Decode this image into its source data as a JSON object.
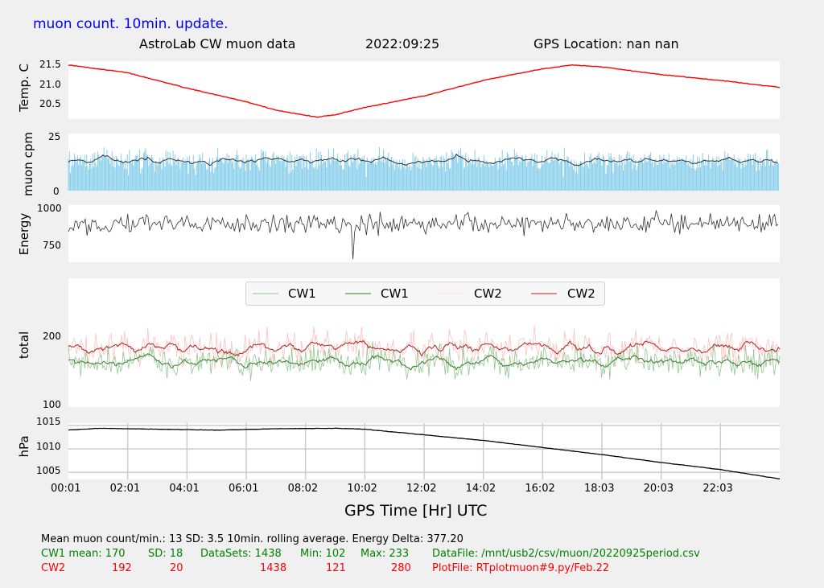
{
  "header": {
    "update_note": "muon count.  10min. update.",
    "title": "AstroLab CW muon data",
    "date": "2022:09:25",
    "gps_location": "GPS Location: nan   nan"
  },
  "xaxis": {
    "label": "GPS Time  [Hr] UTC",
    "ticks": [
      "00:01",
      "02:01",
      "04:01",
      "06:01",
      "08:02",
      "10:02",
      "12:02",
      "14:02",
      "16:02",
      "18:03",
      "20:03",
      "22:03"
    ]
  },
  "legend": [
    "CW1",
    "CW1",
    "CW2",
    "CW2"
  ],
  "stats": {
    "line1": "Mean muon count/min.: 13  SD: 3.5   10min. rolling average.    Energy Delta:  377.20",
    "cw1": {
      "label": "CW1 mean: 170",
      "sd": "SD: 18",
      "datasets": "DataSets: 1438",
      "min": "Min: 102",
      "max": "Max: 233",
      "file": "DataFile: /mnt/usb2/csv/muon/20220925period.csv"
    },
    "cw2": {
      "label": "CW2",
      "mean": "192",
      "sd": "20",
      "datasets": "1438",
      "min": "121",
      "max": "280",
      "file": "PlotFile: RTplotmuon#9.py/Feb.22"
    }
  },
  "colors": {
    "temp": "#ff0000",
    "muon_bar": "#87ceeb",
    "muon_avg": "#333333",
    "energy": "#333333",
    "cw1_raw": "#90c890",
    "cw1_avg": "#3a7a2a",
    "cw2_raw": "#ffc0c0",
    "cw2_avg": "#b02020",
    "pressure": "#000000",
    "update_note": "#0000ff"
  },
  "chart_data": [
    {
      "type": "line",
      "name": "temperature",
      "ylabel": "Temp. C",
      "yticks": [
        "21.5",
        "21.0",
        "20.5"
      ],
      "ylim": [
        20.15,
        21.65
      ],
      "x_hours": [
        0,
        2,
        4,
        6,
        7,
        8,
        8.4,
        9,
        10,
        12,
        14,
        16,
        17,
        18,
        20,
        22,
        24
      ],
      "values": [
        21.55,
        21.35,
        20.95,
        20.6,
        20.38,
        20.25,
        20.2,
        20.26,
        20.45,
        20.75,
        21.15,
        21.45,
        21.55,
        21.5,
        21.3,
        21.15,
        20.97
      ]
    },
    {
      "type": "bar",
      "name": "muon cpm",
      "ylabel": "muon cpm",
      "yticks": [
        "25",
        "0"
      ],
      "ylim": [
        0,
        25
      ],
      "mean": 13,
      "sd": 3.5,
      "rolling_average": "10min."
    },
    {
      "type": "line",
      "name": "energy",
      "ylabel": "Energy",
      "yticks": [
        "1000",
        "750"
      ],
      "ylim": [
        620,
        1010
      ],
      "center": 880,
      "min": 640
    },
    {
      "type": "line",
      "name": "total",
      "ylabel": "total",
      "yticks": [
        "200",
        "100"
      ],
      "ylim": [
        100,
        300
      ],
      "series": [
        {
          "name": "CW1",
          "mean": 170,
          "sd": 18,
          "min": 102,
          "max": 233
        },
        {
          "name": "CW2",
          "mean": 192,
          "sd": 20,
          "min": 121,
          "max": 280
        }
      ]
    },
    {
      "type": "line",
      "name": "pressure",
      "ylabel": "hPa",
      "yticks": [
        "1015",
        "1010",
        "1005"
      ],
      "ylim": [
        1003.5,
        1015.5
      ],
      "x_hours": [
        0,
        1,
        3,
        5,
        7,
        9,
        10,
        12,
        14,
        16,
        18,
        20,
        22,
        24
      ],
      "values": [
        1014.0,
        1014.4,
        1014.2,
        1014.0,
        1014.3,
        1014.4,
        1014.2,
        1013.0,
        1011.8,
        1010.3,
        1008.8,
        1007.1,
        1005.6,
        1003.6
      ]
    }
  ]
}
